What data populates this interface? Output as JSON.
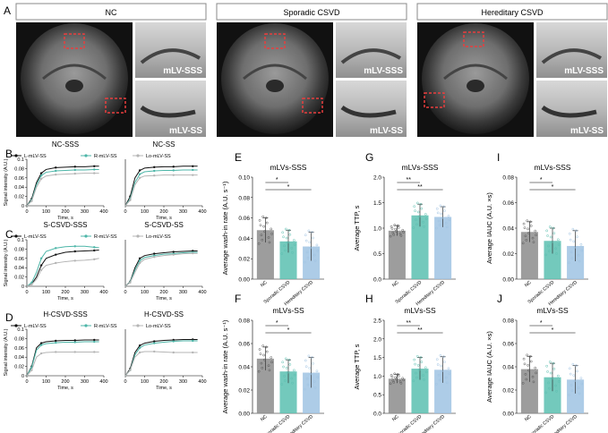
{
  "panel_letters": {
    "A": "A",
    "B": "B",
    "C": "C",
    "D": "D",
    "E": "E",
    "F": "F",
    "G": "G",
    "H": "H",
    "I": "I",
    "J": "J"
  },
  "groups": [
    "NC",
    "Sporadic CSVD",
    "Hereditary CSVD"
  ],
  "mri_insets": {
    "top": "mLV-SSS",
    "bottom": "mLV-SS"
  },
  "colors": {
    "nc": "#8c8c8c",
    "sporadic": "#5bbfb0",
    "hereditary": "#9fc3e3",
    "curve_L": "#111111",
    "curve_R": "#4db6a8",
    "curve_Lo": "#b5b5b5",
    "sig": "#e83e3e"
  },
  "chart_data": [
    {
      "id": "B-left",
      "type": "line",
      "title": "NC-SSS",
      "xlabel": "Time, s",
      "ylabel": "Signal intensity (A.U.)",
      "xlim": [
        0,
        400
      ],
      "ylim": [
        0,
        0.1
      ],
      "xticks": [
        0,
        100,
        200,
        300,
        400
      ],
      "yticks": [
        0,
        0.02,
        0.04,
        0.06,
        0.08,
        0.1
      ],
      "x": [
        0,
        25,
        50,
        75,
        100,
        150,
        200,
        250,
        300,
        350,
        375
      ],
      "series": [
        {
          "name": "L-mLV-SS",
          "values": [
            0,
            0.015,
            0.05,
            0.07,
            0.078,
            0.082,
            0.083,
            0.084,
            0.084,
            0.085,
            0.085
          ]
        },
        {
          "name": "R-mLV-SS",
          "values": [
            0,
            0.012,
            0.045,
            0.065,
            0.072,
            0.075,
            0.076,
            0.077,
            0.077,
            0.078,
            0.078
          ]
        },
        {
          "name": "Lo-mLV-SS",
          "values": [
            0,
            0.01,
            0.04,
            0.058,
            0.064,
            0.067,
            0.068,
            0.069,
            0.07,
            0.07,
            0.07
          ]
        }
      ]
    },
    {
      "id": "B-right",
      "type": "line",
      "title": "NC-SS",
      "xlabel": "Time, s",
      "ylabel": "",
      "xlim": [
        0,
        400
      ],
      "ylim": [
        0,
        0.1
      ],
      "xticks": [
        0,
        100,
        200,
        300,
        400
      ],
      "yticks": [],
      "x": [
        0,
        25,
        50,
        75,
        100,
        150,
        200,
        250,
        300,
        350,
        375
      ],
      "series": [
        {
          "name": "L-mLV-SS",
          "values": [
            0,
            0.02,
            0.06,
            0.076,
            0.081,
            0.083,
            0.084,
            0.084,
            0.085,
            0.085,
            0.085
          ]
        },
        {
          "name": "R-mLV-SS",
          "values": [
            0,
            0.015,
            0.05,
            0.068,
            0.073,
            0.075,
            0.076,
            0.076,
            0.077,
            0.077,
            0.077
          ]
        },
        {
          "name": "Lo-mLV-SS",
          "values": [
            0,
            0.012,
            0.045,
            0.06,
            0.064,
            0.065,
            0.066,
            0.066,
            0.066,
            0.066,
            0.066
          ]
        }
      ]
    },
    {
      "id": "C-left",
      "type": "line",
      "title": "S-CSVD-SSS",
      "xlabel": "Time, s",
      "ylabel": "Signal intensity (A.U.)",
      "xlim": [
        0,
        400
      ],
      "ylim": [
        0,
        0.1
      ],
      "xticks": [
        0,
        100,
        200,
        300,
        400
      ],
      "yticks": [
        0,
        0.02,
        0.04,
        0.06,
        0.08,
        0.1
      ],
      "x": [
        0,
        25,
        50,
        75,
        100,
        150,
        200,
        250,
        300,
        350,
        375
      ],
      "series": [
        {
          "name": "L-mLV-SS",
          "values": [
            0,
            0.005,
            0.02,
            0.045,
            0.06,
            0.068,
            0.073,
            0.075,
            0.076,
            0.077,
            0.078
          ]
        },
        {
          "name": "R-mLV-SS",
          "values": [
            0,
            0.008,
            0.03,
            0.06,
            0.075,
            0.082,
            0.085,
            0.086,
            0.086,
            0.084,
            0.083
          ]
        },
        {
          "name": "Lo-mLV-SS",
          "values": [
            0,
            0.004,
            0.015,
            0.035,
            0.045,
            0.05,
            0.053,
            0.055,
            0.056,
            0.058,
            0.06
          ]
        }
      ]
    },
    {
      "id": "C-right",
      "type": "line",
      "title": "S-CSVD-SS",
      "xlabel": "Time, s",
      "ylabel": "",
      "xlim": [
        0,
        400
      ],
      "ylim": [
        0,
        0.1
      ],
      "xticks": [
        0,
        100,
        200,
        300,
        400
      ],
      "yticks": [],
      "x": [
        0,
        25,
        50,
        75,
        100,
        150,
        200,
        250,
        300,
        350,
        375
      ],
      "series": [
        {
          "name": "L-mLV-SS",
          "values": [
            0,
            0.01,
            0.04,
            0.06,
            0.066,
            0.07,
            0.072,
            0.074,
            0.075,
            0.076,
            0.076
          ]
        },
        {
          "name": "R-mLV-SS",
          "values": [
            0,
            0.009,
            0.035,
            0.055,
            0.062,
            0.066,
            0.069,
            0.07,
            0.072,
            0.073,
            0.073
          ]
        },
        {
          "name": "Lo-mLV-SS",
          "values": [
            0,
            0.008,
            0.03,
            0.05,
            0.058,
            0.063,
            0.066,
            0.068,
            0.07,
            0.071,
            0.071
          ]
        }
      ]
    },
    {
      "id": "D-left",
      "type": "line",
      "title": "H-CSVD-SSS",
      "xlabel": "Time, s",
      "ylabel": "Signal intensity (A.U.)",
      "xlim": [
        0,
        400
      ],
      "ylim": [
        0,
        0.1
      ],
      "xticks": [
        0,
        100,
        200,
        300,
        400
      ],
      "yticks": [
        0,
        0.02,
        0.04,
        0.06,
        0.08,
        0.1
      ],
      "x": [
        0,
        25,
        50,
        75,
        100,
        150,
        200,
        250,
        300,
        350,
        375
      ],
      "series": [
        {
          "name": "L-mLV-SS",
          "values": [
            0,
            0.02,
            0.06,
            0.07,
            0.073,
            0.075,
            0.076,
            0.076,
            0.077,
            0.077,
            0.077
          ]
        },
        {
          "name": "R-mLV-SS",
          "values": [
            0,
            0.018,
            0.055,
            0.066,
            0.069,
            0.071,
            0.072,
            0.072,
            0.073,
            0.073,
            0.073
          ]
        },
        {
          "name": "Lo-mLV-SS",
          "values": [
            0,
            0.012,
            0.04,
            0.048,
            0.05,
            0.051,
            0.051,
            0.051,
            0.051,
            0.051,
            0.051
          ]
        }
      ]
    },
    {
      "id": "D-right",
      "type": "line",
      "title": "H-CSVD-SS",
      "xlabel": "Time, s",
      "ylabel": "",
      "xlim": [
        0,
        400
      ],
      "ylim": [
        0,
        0.1
      ],
      "xticks": [
        0,
        100,
        200,
        300,
        400
      ],
      "yticks": [],
      "x": [
        0,
        25,
        50,
        75,
        100,
        150,
        200,
        250,
        300,
        350,
        375
      ],
      "series": [
        {
          "name": "L-mLV-SS",
          "values": [
            0,
            0.015,
            0.05,
            0.065,
            0.07,
            0.074,
            0.076,
            0.077,
            0.078,
            0.078,
            0.078
          ]
        },
        {
          "name": "R-mLV-SS",
          "values": [
            0,
            0.012,
            0.045,
            0.06,
            0.066,
            0.07,
            0.072,
            0.074,
            0.075,
            0.075,
            0.075
          ]
        },
        {
          "name": "Lo-mLV-SS",
          "values": [
            0,
            0.012,
            0.04,
            0.05,
            0.052,
            0.052,
            0.051,
            0.05,
            0.05,
            0.05,
            0.05
          ]
        }
      ]
    },
    {
      "id": "E",
      "type": "bar",
      "title": "mLVs-SSS",
      "ylabel": "Average wash-in rate (A.U. s⁻¹)",
      "categories": [
        "NC",
        "Sporadic CSVD",
        "Hereditary CSVD"
      ],
      "values": [
        0.048,
        0.037,
        0.032
      ],
      "errors": [
        0.012,
        0.011,
        0.014
      ],
      "ylim": [
        0,
        0.1
      ],
      "yticks": [
        "0.00",
        "0.02",
        "0.04",
        "0.06",
        "0.08",
        "0.10"
      ],
      "yticks_values": [
        0,
        0.02,
        0.04,
        0.06,
        0.08,
        0.1
      ],
      "significance": [
        {
          "from": 0,
          "to": 1,
          "label": "*"
        },
        {
          "from": 0,
          "to": 2,
          "label": "*"
        }
      ]
    },
    {
      "id": "F",
      "type": "bar",
      "title": "mLVs-SS",
      "ylabel": "Average wash-in rate (A.U. s⁻¹)",
      "categories": [
        "NC",
        "Sporadic CSVD",
        "Hereditary CSVD"
      ],
      "values": [
        0.047,
        0.036,
        0.035
      ],
      "errors": [
        0.01,
        0.01,
        0.013
      ],
      "ylim": [
        0,
        0.08
      ],
      "yticks": [
        "0.00",
        "0.02",
        "0.04",
        "0.06",
        "0.08"
      ],
      "yticks_values": [
        0,
        0.02,
        0.04,
        0.06,
        0.08
      ],
      "significance": [
        {
          "from": 0,
          "to": 1,
          "label": "*"
        },
        {
          "from": 0,
          "to": 2,
          "label": "*"
        }
      ]
    },
    {
      "id": "G",
      "type": "bar",
      "title": "mLVs-SSS",
      "ylabel": "Average TTP, s",
      "categories": [
        "NC",
        "Sporadic CSVD",
        "Hereditary CSVD"
      ],
      "values": [
        0.95,
        1.25,
        1.22
      ],
      "errors": [
        0.1,
        0.22,
        0.2
      ],
      "ylim": [
        0,
        2.0
      ],
      "yticks": [
        "0.0",
        "0.5",
        "1.0",
        "1.5",
        "2.0"
      ],
      "yticks_values": [
        0,
        0.5,
        1,
        1.5,
        2
      ],
      "significance": [
        {
          "from": 0,
          "to": 1,
          "label": "**"
        },
        {
          "from": 0,
          "to": 2,
          "label": "**"
        }
      ]
    },
    {
      "id": "H",
      "type": "bar",
      "title": "mLVs-SS",
      "ylabel": "Average TTP, s",
      "categories": [
        "NC",
        "Sporadic CSVD",
        "Hereditary CSVD"
      ],
      "values": [
        0.93,
        1.2,
        1.17
      ],
      "errors": [
        0.12,
        0.3,
        0.35
      ],
      "ylim": [
        0,
        2.5
      ],
      "yticks": [
        "0.0",
        "0.5",
        "1.0",
        "1.5",
        "2.0",
        "2.5"
      ],
      "yticks_values": [
        0,
        0.5,
        1,
        1.5,
        2,
        2.5
      ],
      "significance": [
        {
          "from": 0,
          "to": 1,
          "label": "**"
        },
        {
          "from": 0,
          "to": 2,
          "label": "**"
        }
      ]
    },
    {
      "id": "I",
      "type": "bar",
      "title": "mLVs-SSS",
      "ylabel": "Average IAUC (A.U. ×s)",
      "categories": [
        "NC",
        "Sporadic CSVD",
        "Hereditary CSVD"
      ],
      "values": [
        0.037,
        0.03,
        0.026
      ],
      "errors": [
        0.008,
        0.01,
        0.012
      ],
      "ylim": [
        0,
        0.08
      ],
      "yticks": [
        "0.00",
        "0.02",
        "0.04",
        "0.06",
        "0.08"
      ],
      "yticks_values": [
        0,
        0.02,
        0.04,
        0.06,
        0.08
      ],
      "significance": [
        {
          "from": 0,
          "to": 1,
          "label": "*"
        },
        {
          "from": 0,
          "to": 2,
          "label": "*"
        }
      ]
    },
    {
      "id": "J",
      "type": "bar",
      "title": "mLVs-SS",
      "ylabel": "Average IAUC (A.U. ×s)",
      "categories": [
        "NC",
        "Sporadic CSVD",
        "Hereditary CSVD"
      ],
      "values": [
        0.038,
        0.031,
        0.029
      ],
      "errors": [
        0.011,
        0.012,
        0.012
      ],
      "ylim": [
        0,
        0.08
      ],
      "yticks": [
        "0.00",
        "0.02",
        "0.04",
        "0.06",
        "0.08"
      ],
      "yticks_values": [
        0,
        0.02,
        0.04,
        0.06,
        0.08
      ],
      "significance": [
        {
          "from": 0,
          "to": 1,
          "label": "*"
        },
        {
          "from": 0,
          "to": 2,
          "label": "*"
        }
      ]
    }
  ]
}
